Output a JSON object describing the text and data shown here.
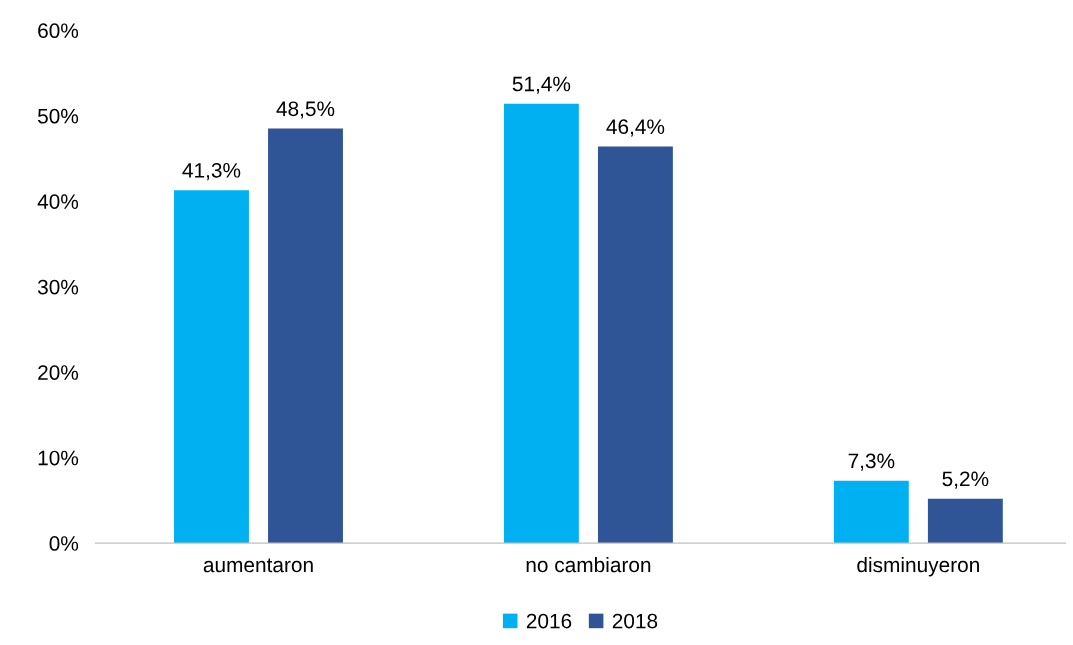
{
  "chart_data": {
    "type": "bar",
    "categories": [
      "aumentaron",
      "no cambiaron",
      "disminuyeron"
    ],
    "series": [
      {
        "name": "2016",
        "color": "#00b0f0",
        "values": [
          41.3,
          51.4,
          7.3
        ],
        "value_labels": [
          "41,3%",
          "51,4%",
          "7,3%"
        ]
      },
      {
        "name": "2018",
        "color": "#2f5597",
        "values": [
          48.5,
          46.4,
          5.2
        ],
        "value_labels": [
          "48,5%",
          "46,4%",
          "5,2%"
        ]
      }
    ],
    "ylim": [
      0,
      60
    ],
    "yticks": [
      {
        "value": 0,
        "label": "0%"
      },
      {
        "value": 10,
        "label": "10%"
      },
      {
        "value": 20,
        "label": "20%"
      },
      {
        "value": 30,
        "label": "30%"
      },
      {
        "value": 40,
        "label": "40%"
      },
      {
        "value": 50,
        "label": "50%"
      },
      {
        "value": 60,
        "label": "60%"
      }
    ],
    "grid": false,
    "legend": "bottom"
  }
}
